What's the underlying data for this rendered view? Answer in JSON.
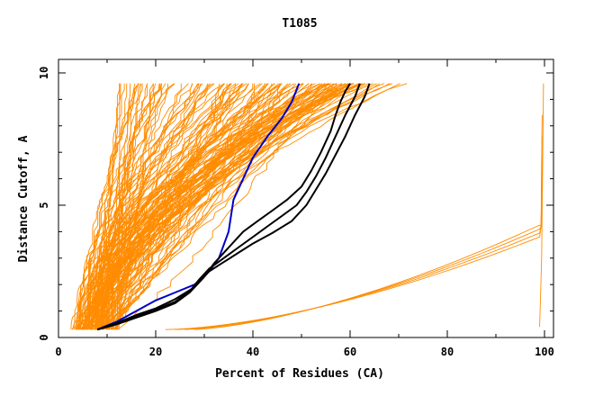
{
  "chart_data": {
    "type": "line",
    "title": "T1085",
    "xlabel": "Percent of Residues (CA)",
    "ylabel": "Distance Cutoff, A",
    "xlim": [
      0,
      102
    ],
    "ylim": [
      0,
      10
    ],
    "x_ticks": [
      0,
      20,
      40,
      60,
      80,
      100
    ],
    "y_ticks": [
      0,
      5,
      10
    ],
    "grid": false,
    "legend": "none",
    "colors": {
      "models": "#ff8c00",
      "highlight_black": "#000000",
      "highlight_blue": "#0000c8",
      "axes": "#000000"
    },
    "series": [
      {
        "style": "blue",
        "x": [
          8,
          12,
          16,
          20,
          24,
          28,
          31,
          33,
          34,
          35,
          35.5,
          36,
          38,
          40,
          43,
          46,
          48,
          49.5
        ],
        "y": [
          0.3,
          0.6,
          1.0,
          1.4,
          1.7,
          2.0,
          2.5,
          3.0,
          3.5,
          4.0,
          4.6,
          5.2,
          6.0,
          6.8,
          7.6,
          8.3,
          8.9,
          9.6
        ]
      },
      {
        "style": "black",
        "x": [
          8,
          12,
          16,
          20,
          24,
          28,
          30,
          32,
          34,
          36,
          38,
          41,
          44,
          47,
          50,
          52,
          54,
          56,
          57,
          58,
          59,
          60
        ],
        "y": [
          0.3,
          0.55,
          0.85,
          1.1,
          1.45,
          1.9,
          2.3,
          2.8,
          3.2,
          3.6,
          4.0,
          4.4,
          4.8,
          5.2,
          5.7,
          6.3,
          7.0,
          7.8,
          8.4,
          8.9,
          9.3,
          9.6
        ]
      },
      {
        "style": "black",
        "x": [
          8,
          12,
          16,
          20,
          24,
          27,
          29,
          31,
          34,
          37,
          40,
          43,
          46,
          49,
          51,
          53,
          55,
          57,
          59,
          61,
          62
        ],
        "y": [
          0.3,
          0.55,
          0.8,
          1.05,
          1.35,
          1.75,
          2.2,
          2.6,
          3.0,
          3.4,
          3.8,
          4.2,
          4.6,
          5.0,
          5.5,
          6.1,
          6.8,
          7.6,
          8.4,
          9.1,
          9.6
        ]
      },
      {
        "style": "black",
        "x": [
          8,
          12,
          16,
          20,
          24,
          27,
          29,
          31,
          34,
          37,
          40,
          44,
          48,
          51,
          53,
          55,
          57,
          59,
          61,
          63,
          64
        ],
        "y": [
          0.3,
          0.5,
          0.75,
          1.0,
          1.3,
          1.7,
          2.1,
          2.5,
          2.85,
          3.2,
          3.55,
          3.95,
          4.4,
          5.0,
          5.6,
          6.2,
          6.9,
          7.6,
          8.4,
          9.1,
          9.6
        ]
      }
    ]
  }
}
